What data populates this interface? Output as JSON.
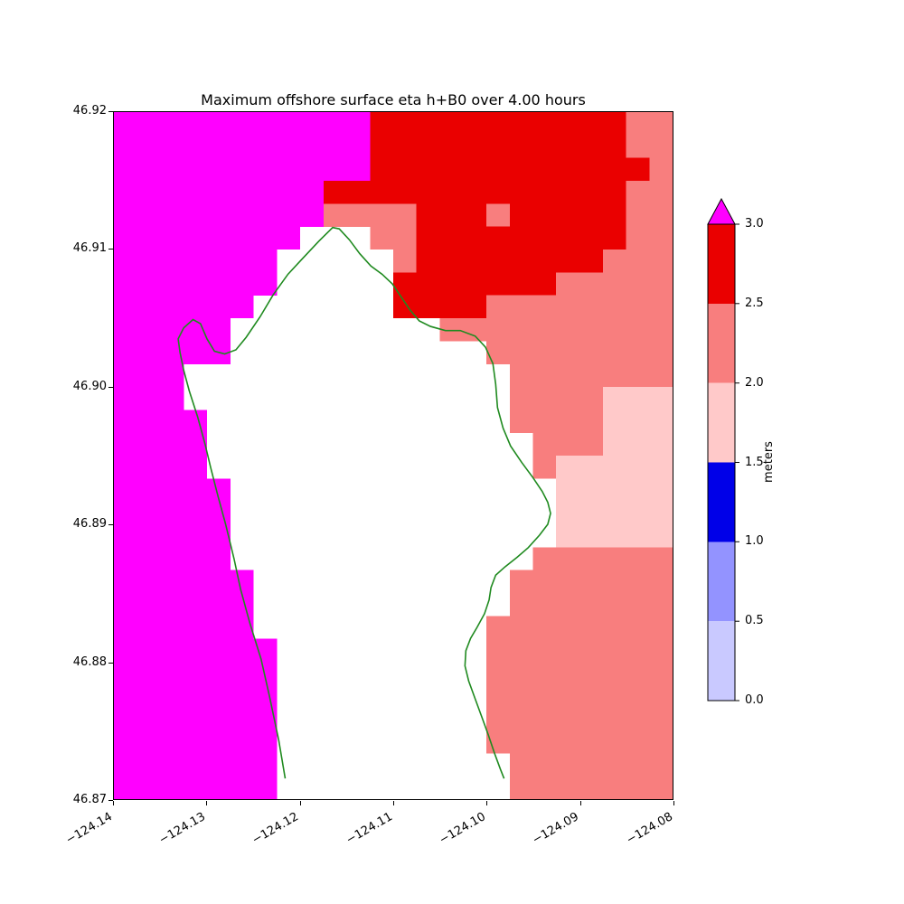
{
  "title": "Maximum offshore surface eta h+B0 over 4.00 hours",
  "chart_data": {
    "type": "heatmap",
    "title": "Maximum offshore surface eta h+B0 over 4.00 hours",
    "xlabel": "",
    "ylabel": "",
    "legend_position": "colorbar-right",
    "grid_lines": "off",
    "x_range": [
      -124.14,
      -124.08
    ],
    "y_range": [
      46.87,
      46.92
    ],
    "x_ticks": [
      "−124.14",
      "−124.13",
      "−124.12",
      "−124.11",
      "−124.10",
      "−124.09",
      "−124.08"
    ],
    "y_ticks": [
      "46.92",
      "46.91",
      "46.90",
      "46.89",
      "46.88",
      "46.87"
    ],
    "grid": {
      "ncols": 24,
      "nrows": 30,
      "note": "codes per cell, row 0 = north (46.92); '.'=white masked land cell",
      "legend": {
        "M": {
          "range": "> 3.0 m",
          "color": "#ff00ff"
        },
        "R": {
          "range": "2.5–3.0 m",
          "color": "#ea0000"
        },
        "S": {
          "range": "2.0–2.5 m",
          "color": "#f87e7e"
        },
        "P": {
          "range": "1.5–2.0 m",
          "color": "#ffc9c9"
        }
      },
      "cell_codes": [
        "MMMMMMMMMMMRRRRRRRRRRRSS",
        "MMMMMMMMMMMRRRRRRRRRRRSS",
        "MMMMMMMMMMMRRRRRRRRRRRRS",
        "MMMMMMMMMRRRRRRRRRRRRRSS",
        "MMMMMMMMMSSSSRRRSRRRRRSS",
        "MMMMMMMM...SSRRRRRRRRRSS",
        "MMMMMMM.....SRRRRRRRRSSS",
        "MMMMMMM.....RRRRRRRSSSSS",
        "MMMMMM......RRRRSSSSSSSS",
        "MMMMM.........SSSSSSSSSS",
        "MMMMM...........SSSSSSSS",
        "MMM..............SSSSSSS",
        "MMM..............SSSSPPP",
        "MMMM.............SSSSPPP",
        "MMMM..............SSSPPP",
        "MMMM..............SPPPPP",
        "MMMMM..............PPPPP",
        "MMMMM..............PPPPP",
        "MMMMM..............PPPPP",
        "MMMMM.............SSSSSS",
        "MMMMMM...........SSSSSSS",
        "MMMMMM...........SSSSSSS",
        "MMMMMM..........SSSSSSSS",
        "MMMMMMM.........SSSSSSSS",
        "MMMMMMM.........SSSSSSSS",
        "MMMMMMM.........SSSSSSSS",
        "MMMMMMM.........SSSSSSSS",
        "MMMMMMM.........SSSSSSSS",
        "MMMMMMM..........SSSSSSS",
        "MMMMMMM..........SSSSSSS"
      ]
    },
    "coastline": {
      "color": "#1f8a1f",
      "points": [
        [
          -124.1216,
          46.8715
        ],
        [
          -124.1223,
          46.8743
        ],
        [
          -124.1233,
          46.8775
        ],
        [
          -124.1242,
          46.8802
        ],
        [
          -124.1254,
          46.8828
        ],
        [
          -124.1264,
          46.8853
        ],
        [
          -124.1271,
          46.8875
        ],
        [
          -124.128,
          46.89
        ],
        [
          -124.1288,
          46.892
        ],
        [
          -124.1296,
          46.8941
        ],
        [
          -124.1302,
          46.8958
        ],
        [
          -124.131,
          46.8978
        ],
        [
          -124.1319,
          46.8997
        ],
        [
          -124.1325,
          46.9012
        ],
        [
          -124.1329,
          46.9025
        ],
        [
          -124.1331,
          46.9035
        ],
        [
          -124.1325,
          46.9043
        ],
        [
          -124.1315,
          46.9049
        ],
        [
          -124.1307,
          46.9046
        ],
        [
          -124.13,
          46.9035
        ],
        [
          -124.1292,
          46.9026
        ],
        [
          -124.1281,
          46.9024
        ],
        [
          -124.1269,
          46.9027
        ],
        [
          -124.1258,
          46.9036
        ],
        [
          -124.1243,
          46.9051
        ],
        [
          -124.1229,
          46.9067
        ],
        [
          -124.1213,
          46.9082
        ],
        [
          -124.1198,
          46.9093
        ],
        [
          -124.118,
          46.9106
        ],
        [
          -124.1165,
          46.9116
        ],
        [
          -124.1158,
          46.9115
        ],
        [
          -124.1147,
          46.9107
        ],
        [
          -124.1136,
          46.9097
        ],
        [
          -124.1124,
          46.9088
        ],
        [
          -124.1112,
          46.9082
        ],
        [
          -124.1101,
          46.9075
        ],
        [
          -124.1091,
          46.9065
        ],
        [
          -124.1082,
          46.9056
        ],
        [
          -124.1072,
          46.9048
        ],
        [
          -124.106,
          46.9044
        ],
        [
          -124.1044,
          46.9041
        ],
        [
          -124.1028,
          46.9041
        ],
        [
          -124.1012,
          46.9037
        ],
        [
          -124.1001,
          46.9029
        ],
        [
          -124.0993,
          46.9017
        ],
        [
          -124.099,
          46.9002
        ],
        [
          -124.0988,
          46.8985
        ],
        [
          -124.0982,
          46.897
        ],
        [
          -124.0974,
          46.8957
        ],
        [
          -124.0962,
          46.8945
        ],
        [
          -124.095,
          46.8934
        ],
        [
          -124.094,
          46.8924
        ],
        [
          -124.0934,
          46.8916
        ],
        [
          -124.0931,
          46.8908
        ],
        [
          -124.0934,
          46.89
        ],
        [
          -124.0943,
          46.8892
        ],
        [
          -124.0955,
          46.8883
        ],
        [
          -124.0967,
          46.8876
        ],
        [
          -124.098,
          46.8869
        ],
        [
          -124.099,
          46.8863
        ],
        [
          -124.0995,
          46.8854
        ],
        [
          -124.0997,
          46.8845
        ],
        [
          -124.1002,
          46.8835
        ],
        [
          -124.101,
          46.8825
        ],
        [
          -124.1017,
          46.8817
        ],
        [
          -124.1022,
          46.8808
        ],
        [
          -124.1023,
          46.8797
        ],
        [
          -124.1019,
          46.8786
        ],
        [
          -124.1012,
          46.8773
        ],
        [
          -124.1005,
          46.876
        ],
        [
          -124.0998,
          46.8747
        ],
        [
          -124.0991,
          46.8733
        ],
        [
          -124.0985,
          46.8722
        ],
        [
          -124.0981,
          46.8715
        ]
      ]
    },
    "colorbar": {
      "label": "meters",
      "ticks": [
        "3.0",
        "2.5",
        "2.0",
        "1.5",
        "1.0",
        "0.5",
        "0.0"
      ],
      "segments_bottom_to_top": [
        {
          "range": "0.0–0.5",
          "color": "#c9c9ff"
        },
        {
          "range": "0.5–1.0",
          "color": "#9393ff"
        },
        {
          "range": "1.0–1.5",
          "color": "#0000e8"
        },
        {
          "range": "1.5–2.0",
          "color": "#ffc9c9"
        },
        {
          "range": "2.0–2.5",
          "color": "#f87e7e"
        },
        {
          "range": "2.5–3.0",
          "color": "#ea0000"
        }
      ],
      "over_color": "#ff00ff"
    }
  }
}
